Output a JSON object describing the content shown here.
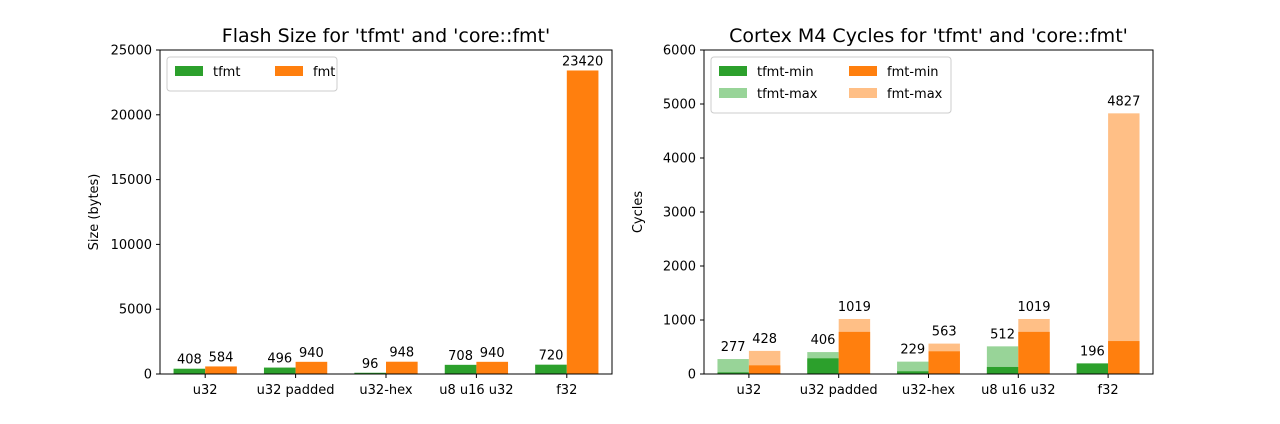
{
  "chart_data": [
    {
      "type": "bar",
      "title": "Flash Size for 'tfmt' and 'core::fmt'",
      "xlabel": "",
      "ylabel": "Size (bytes)",
      "ylim": [
        0,
        25000
      ],
      "yticks": [
        0,
        5000,
        10000,
        15000,
        20000,
        25000
      ],
      "categories": [
        "u32",
        "u32 padded",
        "u32-hex",
        "u8 u16 u32",
        "f32"
      ],
      "series": [
        {
          "name": "tfmt",
          "color": "#2ca02c",
          "values": [
            408,
            496,
            96,
            708,
            720
          ]
        },
        {
          "name": "fmt",
          "color": "#ff7f0e",
          "values": [
            584,
            940,
            948,
            940,
            23420
          ]
        }
      ],
      "legend": {
        "location": "upper-left",
        "columns": 2
      },
      "grid": false
    },
    {
      "type": "bar",
      "title": "Cortex M4 Cycles for 'tfmt' and 'core::fmt'",
      "xlabel": "",
      "ylabel": "Cycles",
      "ylim": [
        0,
        6000
      ],
      "yticks": [
        0,
        1000,
        2000,
        3000,
        4000,
        5000,
        6000
      ],
      "categories": [
        "u32",
        "u32 padded",
        "u32-hex",
        "u8 u16 u32",
        "f32"
      ],
      "series": [
        {
          "name": "tfmt-min",
          "color": "#2ca02c",
          "group": "tfmt",
          "values": [
            30,
            290,
            50,
            130,
            196
          ]
        },
        {
          "name": "tfmt-max",
          "color": "#98d498",
          "group": "tfmt",
          "values": [
            277,
            406,
            229,
            512,
            196
          ]
        },
        {
          "name": "fmt-min",
          "color": "#ff7f0e",
          "group": "fmt",
          "values": [
            160,
            780,
            420,
            780,
            610
          ]
        },
        {
          "name": "fmt-max",
          "color": "#ffbf86",
          "group": "fmt",
          "values": [
            428,
            1019,
            563,
            1019,
            4827
          ]
        }
      ],
      "data_labels": {
        "tfmt": [
          277,
          406,
          229,
          512,
          196
        ],
        "fmt": [
          428,
          1019,
          563,
          1019,
          4827
        ]
      },
      "legend": {
        "location": "upper-left",
        "columns": 2
      },
      "grid": false
    }
  ]
}
